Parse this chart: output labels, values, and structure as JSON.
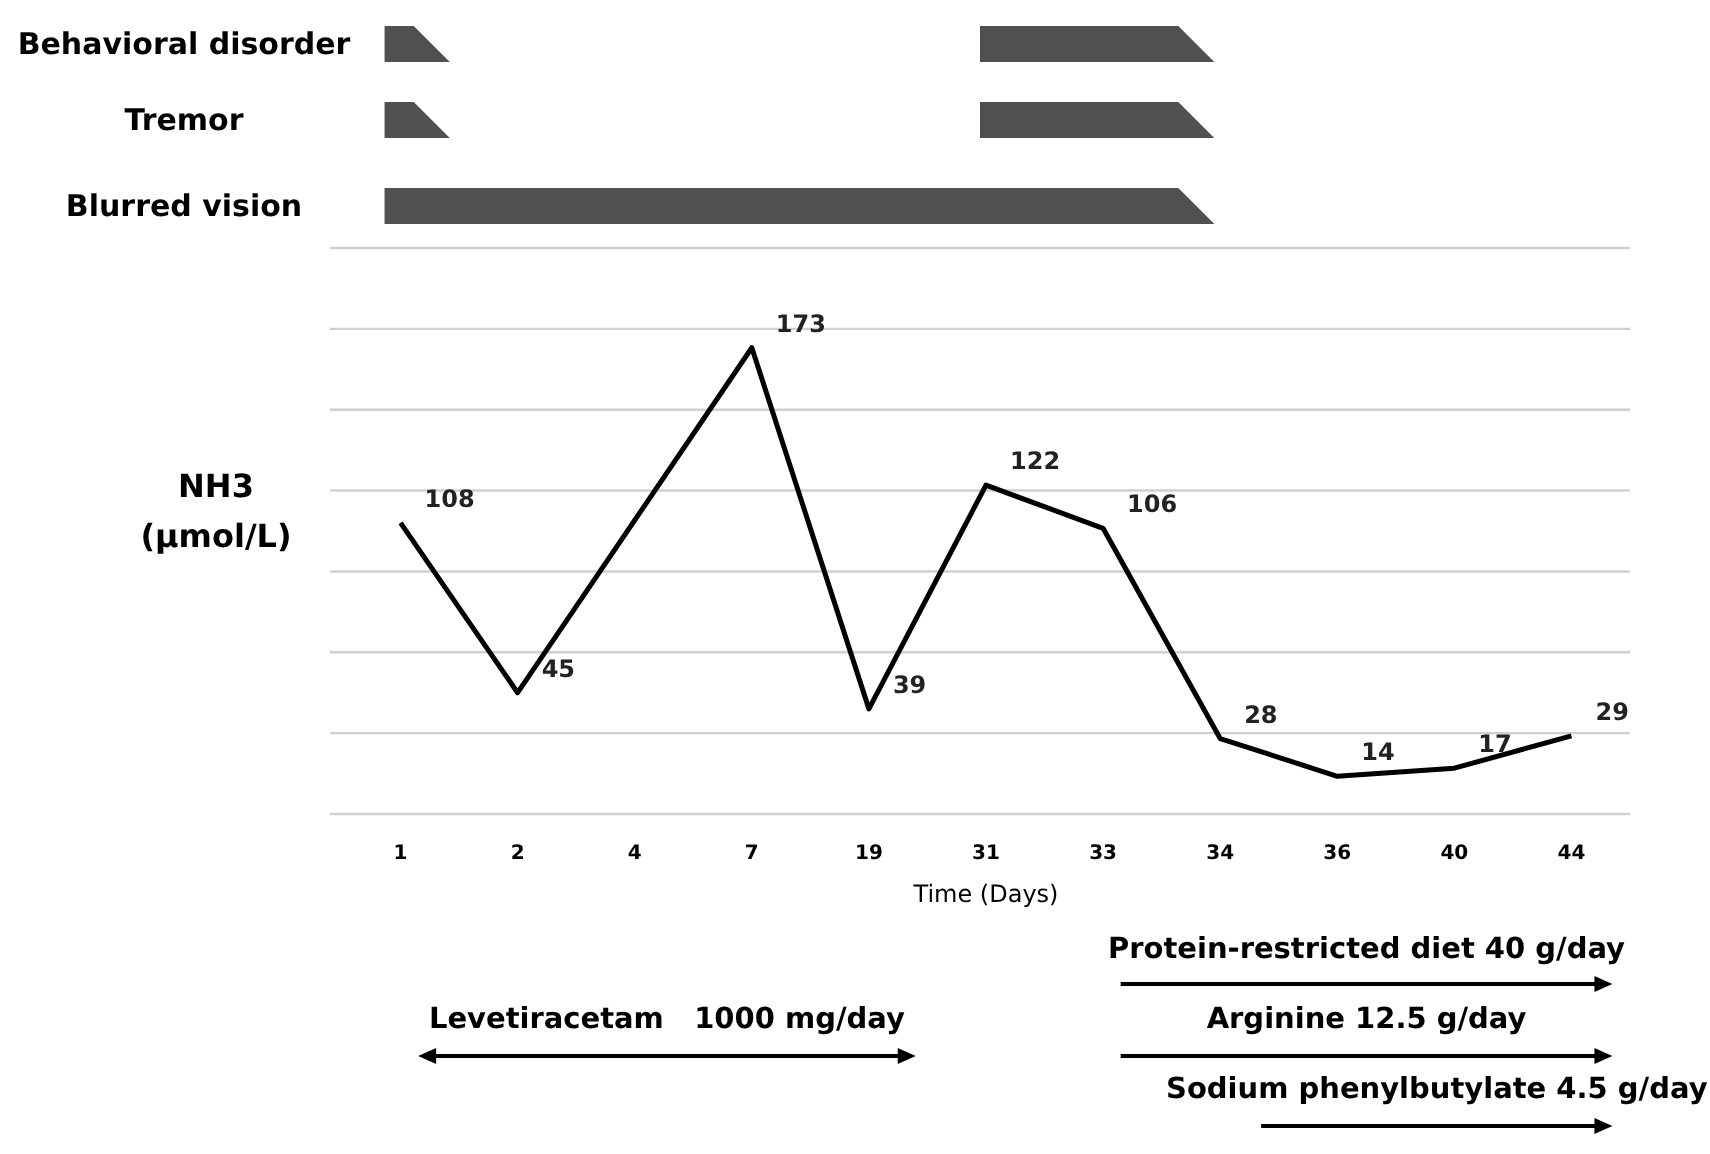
{
  "chart_data": [
    {
      "type": "other",
      "categories": [
        "Behavioral disorder",
        "Tremor",
        "Blurred vision"
      ]
    },
    {
      "type": "line",
      "categories": [
        "1",
        "2",
        "4",
        "7",
        "19",
        "31",
        "33",
        "34",
        "36",
        "40",
        "44"
      ],
      "series": [
        {
          "color": "#000000",
          "values": [
            108,
            45,
            null,
            173,
            39,
            122,
            106,
            28,
            14,
            17,
            29
          ]
        }
      ],
      "data_labels": true,
      "ylabel": "NH3 (μmol/L)",
      "xlabel": "Time (Days)",
      "ylim": [
        0,
        210
      ],
      "yticks": [
        {
          "value": 0,
          "label": null
        },
        {
          "value": 30,
          "label": null
        },
        {
          "value": 60,
          "label": null
        },
        {
          "value": 90,
          "label": null
        },
        {
          "value": 120,
          "label": null
        },
        {
          "value": 150,
          "label": null
        },
        {
          "value": 180,
          "label": null
        },
        {
          "value": 210,
          "label": null
        }
      ],
      "tick_labels": "x",
      "grid": "y",
      "marker": "none",
      "line_style": "solid",
      "annotations": [
        "Levetiracetam   1000 mg/day",
        "Protein-restricted diet 40 g/day",
        "Arginine 12.5 g/day",
        "Sodium phenylbutylate 4.5 g/day"
      ]
    }
  ]
}
